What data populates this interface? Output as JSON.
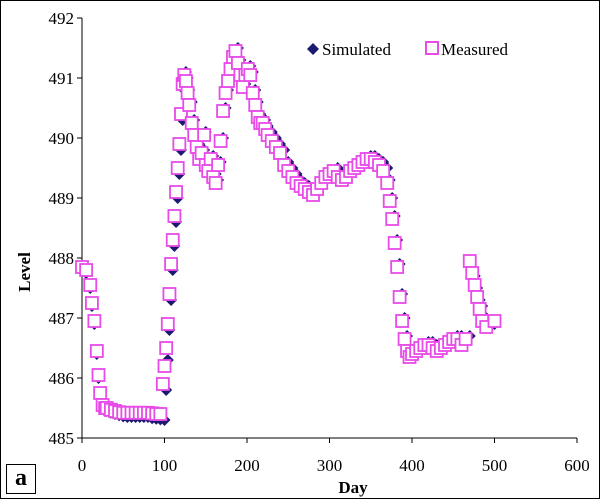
{
  "panel_label": "a",
  "chart_data": {
    "type": "scatter",
    "title": "",
    "xlabel": "Day",
    "ylabel": "Level",
    "xlim": [
      0,
      600
    ],
    "ylim": [
      485,
      492
    ],
    "xticks": [
      "0",
      "100",
      "200",
      "300",
      "400",
      "500",
      "600"
    ],
    "yticks": [
      "485",
      "486",
      "487",
      "488",
      "489",
      "490",
      "491",
      "492"
    ],
    "grid": false,
    "legend_position": "top-right",
    "series": [
      {
        "name": "Simulated",
        "marker": "diamond",
        "color": "#1a1a6e",
        "x": [
          0,
          5,
          10,
          12,
          15,
          18,
          20,
          22,
          25,
          28,
          30,
          35,
          40,
          45,
          50,
          55,
          60,
          65,
          70,
          75,
          80,
          85,
          90,
          95,
          100,
          102,
          104,
          106,
          108,
          110,
          112,
          114,
          116,
          118,
          120,
          122,
          124,
          126,
          128,
          130,
          133,
          136,
          139,
          142,
          145,
          148,
          150,
          153,
          156,
          159,
          162,
          165,
          168,
          171,
          174,
          177,
          180,
          183,
          186,
          189,
          192,
          195,
          198,
          201,
          204,
          207,
          210,
          213,
          216,
          219,
          222,
          225,
          230,
          235,
          240,
          245,
          250,
          255,
          260,
          265,
          270,
          275,
          280,
          285,
          290,
          295,
          300,
          305,
          310,
          315,
          320,
          325,
          330,
          335,
          340,
          345,
          350,
          355,
          360,
          365,
          370,
          373,
          376,
          379,
          382,
          385,
          388,
          391,
          394,
          397,
          400,
          405,
          410,
          415,
          420,
          425,
          430,
          435,
          440,
          445,
          450,
          455,
          460,
          465,
          470,
          473,
          476,
          479,
          482,
          485,
          490,
          500
        ],
        "y": [
          487.8,
          487.75,
          487.5,
          487.2,
          486.9,
          486.4,
          486.0,
          485.7,
          485.5,
          485.45,
          485.45,
          485.42,
          485.4,
          485.38,
          485.36,
          485.35,
          485.35,
          485.35,
          485.35,
          485.35,
          485.35,
          485.33,
          485.32,
          485.31,
          485.3,
          485.8,
          486.3,
          486.8,
          487.3,
          487.8,
          488.2,
          488.6,
          489.0,
          489.4,
          489.8,
          490.3,
          490.8,
          491.1,
          491.0,
          490.8,
          490.6,
          490.3,
          490.1,
          489.9,
          489.7,
          489.8,
          490.1,
          489.6,
          489.5,
          489.7,
          489.4,
          489.3,
          489.6,
          490.0,
          490.5,
          490.8,
          491.0,
          491.2,
          491.4,
          491.5,
          491.3,
          491.1,
          490.9,
          491.1,
          491.2,
          491.1,
          490.8,
          490.6,
          490.4,
          490.3,
          490.3,
          490.2,
          490.1,
          490.0,
          489.9,
          489.8,
          489.6,
          489.5,
          489.4,
          489.3,
          489.25,
          489.2,
          489.15,
          489.1,
          489.2,
          489.3,
          489.4,
          489.45,
          489.5,
          489.4,
          489.35,
          489.4,
          489.5,
          489.55,
          489.6,
          489.65,
          489.7,
          489.7,
          489.65,
          489.6,
          489.5,
          489.3,
          489.0,
          488.7,
          488.3,
          487.9,
          487.4,
          487.0,
          486.7,
          486.5,
          486.4,
          486.45,
          486.5,
          486.55,
          486.6,
          486.6,
          486.55,
          486.5,
          486.55,
          486.6,
          486.65,
          486.7,
          486.7,
          486.6,
          486.7,
          487.8,
          487.7,
          487.5,
          487.3,
          487.2,
          487.0,
          486.9
        ]
      },
      {
        "name": "Measured",
        "marker": "square",
        "color": "#e84be8",
        "x": [
          0,
          5,
          10,
          12,
          15,
          18,
          20,
          22,
          25,
          28,
          30,
          35,
          40,
          45,
          50,
          55,
          60,
          65,
          70,
          75,
          80,
          85,
          90,
          95,
          98,
          100,
          102,
          104,
          106,
          108,
          110,
          112,
          114,
          116,
          118,
          120,
          122,
          124,
          126,
          128,
          130,
          133,
          136,
          139,
          142,
          145,
          148,
          150,
          153,
          156,
          159,
          162,
          165,
          168,
          171,
          174,
          177,
          180,
          183,
          186,
          189,
          192,
          195,
          198,
          201,
          204,
          207,
          210,
          213,
          216,
          219,
          222,
          225,
          230,
          235,
          240,
          245,
          250,
          255,
          260,
          265,
          270,
          275,
          280,
          285,
          290,
          295,
          300,
          305,
          310,
          315,
          320,
          325,
          330,
          335,
          340,
          345,
          350,
          355,
          360,
          365,
          370,
          373,
          376,
          379,
          382,
          385,
          388,
          391,
          394,
          397,
          400,
          405,
          410,
          415,
          420,
          425,
          430,
          435,
          440,
          445,
          450,
          455,
          460,
          465,
          470,
          473,
          476,
          479,
          482,
          485,
          490,
          500
        ],
        "y": [
          487.85,
          487.8,
          487.55,
          487.25,
          486.95,
          486.45,
          486.05,
          485.75,
          485.55,
          485.5,
          485.5,
          485.47,
          485.45,
          485.43,
          485.42,
          485.42,
          485.42,
          485.42,
          485.42,
          485.42,
          485.42,
          485.41,
          485.4,
          485.4,
          485.9,
          486.2,
          486.5,
          486.9,
          487.4,
          487.9,
          488.3,
          488.7,
          489.1,
          489.5,
          489.9,
          490.4,
          490.9,
          491.05,
          490.95,
          490.75,
          490.55,
          490.25,
          490.05,
          489.85,
          489.65,
          489.75,
          490.05,
          489.55,
          489.45,
          489.65,
          489.35,
          489.25,
          489.55,
          489.95,
          490.45,
          490.75,
          490.95,
          491.15,
          491.35,
          491.45,
          491.25,
          491.05,
          490.85,
          491.05,
          491.15,
          491.05,
          490.75,
          490.55,
          490.35,
          490.25,
          490.25,
          490.15,
          490.05,
          489.95,
          489.85,
          489.75,
          489.55,
          489.45,
          489.35,
          489.25,
          489.2,
          489.15,
          489.1,
          489.05,
          489.15,
          489.25,
          489.35,
          489.4,
          489.45,
          489.35,
          489.3,
          489.35,
          489.45,
          489.5,
          489.55,
          489.6,
          489.65,
          489.65,
          489.6,
          489.55,
          489.45,
          489.25,
          488.95,
          488.65,
          488.25,
          487.85,
          487.35,
          486.95,
          486.65,
          486.45,
          486.35,
          486.4,
          486.45,
          486.5,
          486.55,
          486.55,
          486.5,
          486.45,
          486.5,
          486.55,
          486.6,
          486.65,
          486.65,
          486.55,
          486.65,
          487.95,
          487.75,
          487.55,
          487.35,
          487.15,
          486.95,
          486.85,
          486.95
        ]
      }
    ]
  }
}
